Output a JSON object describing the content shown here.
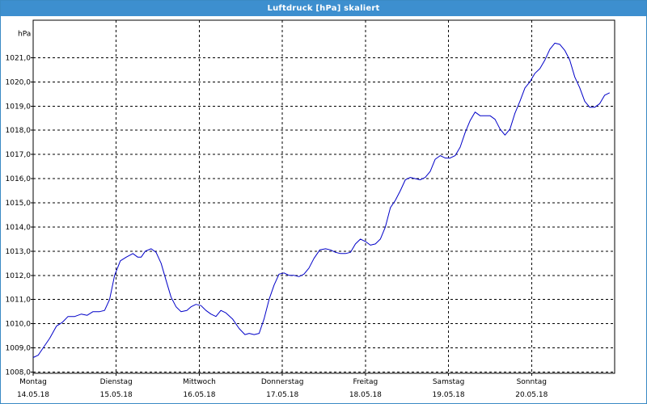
{
  "window": {
    "title": "Luftdruck [hPa] skaliert"
  },
  "colors": {
    "titlebar": "#3d8fcf",
    "line": "#0000c8",
    "grid": "#000000",
    "background": "#ffffff"
  },
  "chart_data": {
    "type": "line",
    "title": "Luftdruck [hPa] skaliert",
    "ylabel": "hPa",
    "xlabel": "",
    "ylim": [
      1007.95,
      1022.55
    ],
    "xlim": [
      0,
      7.0
    ],
    "grid": true,
    "y_ticks": [
      1008.0,
      1009.0,
      1010.0,
      1011.0,
      1012.0,
      1013.0,
      1014.0,
      1015.0,
      1016.0,
      1017.0,
      1018.0,
      1019.0,
      1020.0,
      1021.0
    ],
    "y_tick_labels": [
      "1008,0",
      "1009,0",
      "1010,0",
      "1011,0",
      "1012,0",
      "1013,0",
      "1014,0",
      "1015,0",
      "1016,0",
      "1017,0",
      "1018,0",
      "1019,0",
      "1020,0",
      "1021,0"
    ],
    "x_ticks": [
      {
        "day": "Montag",
        "date": "14.05.18"
      },
      {
        "day": "Dienstag",
        "date": "15.05.18"
      },
      {
        "day": "Mittwoch",
        "date": "16.05.18"
      },
      {
        "day": "Donnerstag",
        "date": "17.05.18"
      },
      {
        "day": "Freitag",
        "date": "18.05.18"
      },
      {
        "day": "Samstag",
        "date": "19.05.18"
      },
      {
        "day": "Sonntag",
        "date": "20.05.18"
      }
    ],
    "series": [
      {
        "x": [
          0.0,
          0.06,
          0.12,
          0.2,
          0.28,
          0.35,
          0.42,
          0.5,
          0.58,
          0.65,
          0.72,
          0.8,
          0.86,
          0.92,
          0.98,
          1.05,
          1.12,
          1.2,
          1.26,
          1.3,
          1.35,
          1.42,
          1.48,
          1.54,
          1.6,
          1.66,
          1.72,
          1.78,
          1.85,
          1.9,
          1.96,
          2.02,
          2.08,
          2.14,
          2.2,
          2.26,
          2.32,
          2.4,
          2.48,
          2.55,
          2.6,
          2.66,
          2.72,
          2.78,
          2.84,
          2.9,
          2.96,
          3.02,
          3.08,
          3.14,
          3.2,
          3.26,
          3.32,
          3.38,
          3.45,
          3.52,
          3.58,
          3.64,
          3.7,
          3.76,
          3.82,
          3.88,
          3.94,
          4.0,
          4.06,
          4.12,
          4.18,
          4.24,
          4.3,
          4.36,
          4.42,
          4.48,
          4.54,
          4.6,
          4.66,
          4.72,
          4.78,
          4.84,
          4.9,
          4.96,
          5.02,
          5.08,
          5.14,
          5.2,
          5.26,
          5.32,
          5.38,
          5.44,
          5.5,
          5.56,
          5.62,
          5.68,
          5.74,
          5.8,
          5.86,
          5.92,
          5.98,
          6.04,
          6.1,
          6.16,
          6.22,
          6.28,
          6.34,
          6.4,
          6.46,
          6.52,
          6.58,
          6.64,
          6.7,
          6.76,
          6.82,
          6.88,
          6.94
        ],
        "values": [
          1008.6,
          1008.7,
          1009.0,
          1009.4,
          1009.9,
          1010.05,
          1010.3,
          1010.3,
          1010.4,
          1010.35,
          1010.5,
          1010.5,
          1010.55,
          1011.0,
          1012.0,
          1012.6,
          1012.75,
          1012.9,
          1012.75,
          1012.75,
          1013.0,
          1013.1,
          1012.95,
          1012.5,
          1011.8,
          1011.1,
          1010.7,
          1010.5,
          1010.55,
          1010.7,
          1010.8,
          1010.75,
          1010.55,
          1010.4,
          1010.3,
          1010.55,
          1010.45,
          1010.2,
          1009.8,
          1009.55,
          1009.6,
          1009.55,
          1009.6,
          1010.2,
          1011.0,
          1011.6,
          1012.05,
          1012.1,
          1012.0,
          1012.0,
          1011.95,
          1012.05,
          1012.3,
          1012.7,
          1013.05,
          1013.1,
          1013.05,
          1012.95,
          1012.9,
          1012.9,
          1012.95,
          1013.3,
          1013.5,
          1013.4,
          1013.25,
          1013.3,
          1013.5,
          1014.0,
          1014.8,
          1015.1,
          1015.5,
          1015.95,
          1016.05,
          1016.0,
          1015.95,
          1016.05,
          1016.3,
          1016.8,
          1016.95,
          1016.85,
          1016.85,
          1016.95,
          1017.3,
          1017.9,
          1018.4,
          1018.75,
          1018.6,
          1018.6,
          1018.6,
          1018.45,
          1018.05,
          1017.8,
          1018.05,
          1018.7,
          1019.2,
          1019.75,
          1020.0,
          1020.35,
          1020.55,
          1020.9,
          1021.35,
          1021.6,
          1021.55,
          1021.3,
          1020.9,
          1020.2,
          1019.75,
          1019.2,
          1018.95,
          1018.95,
          1019.1,
          1019.45,
          1019.55
        ]
      }
    ]
  }
}
